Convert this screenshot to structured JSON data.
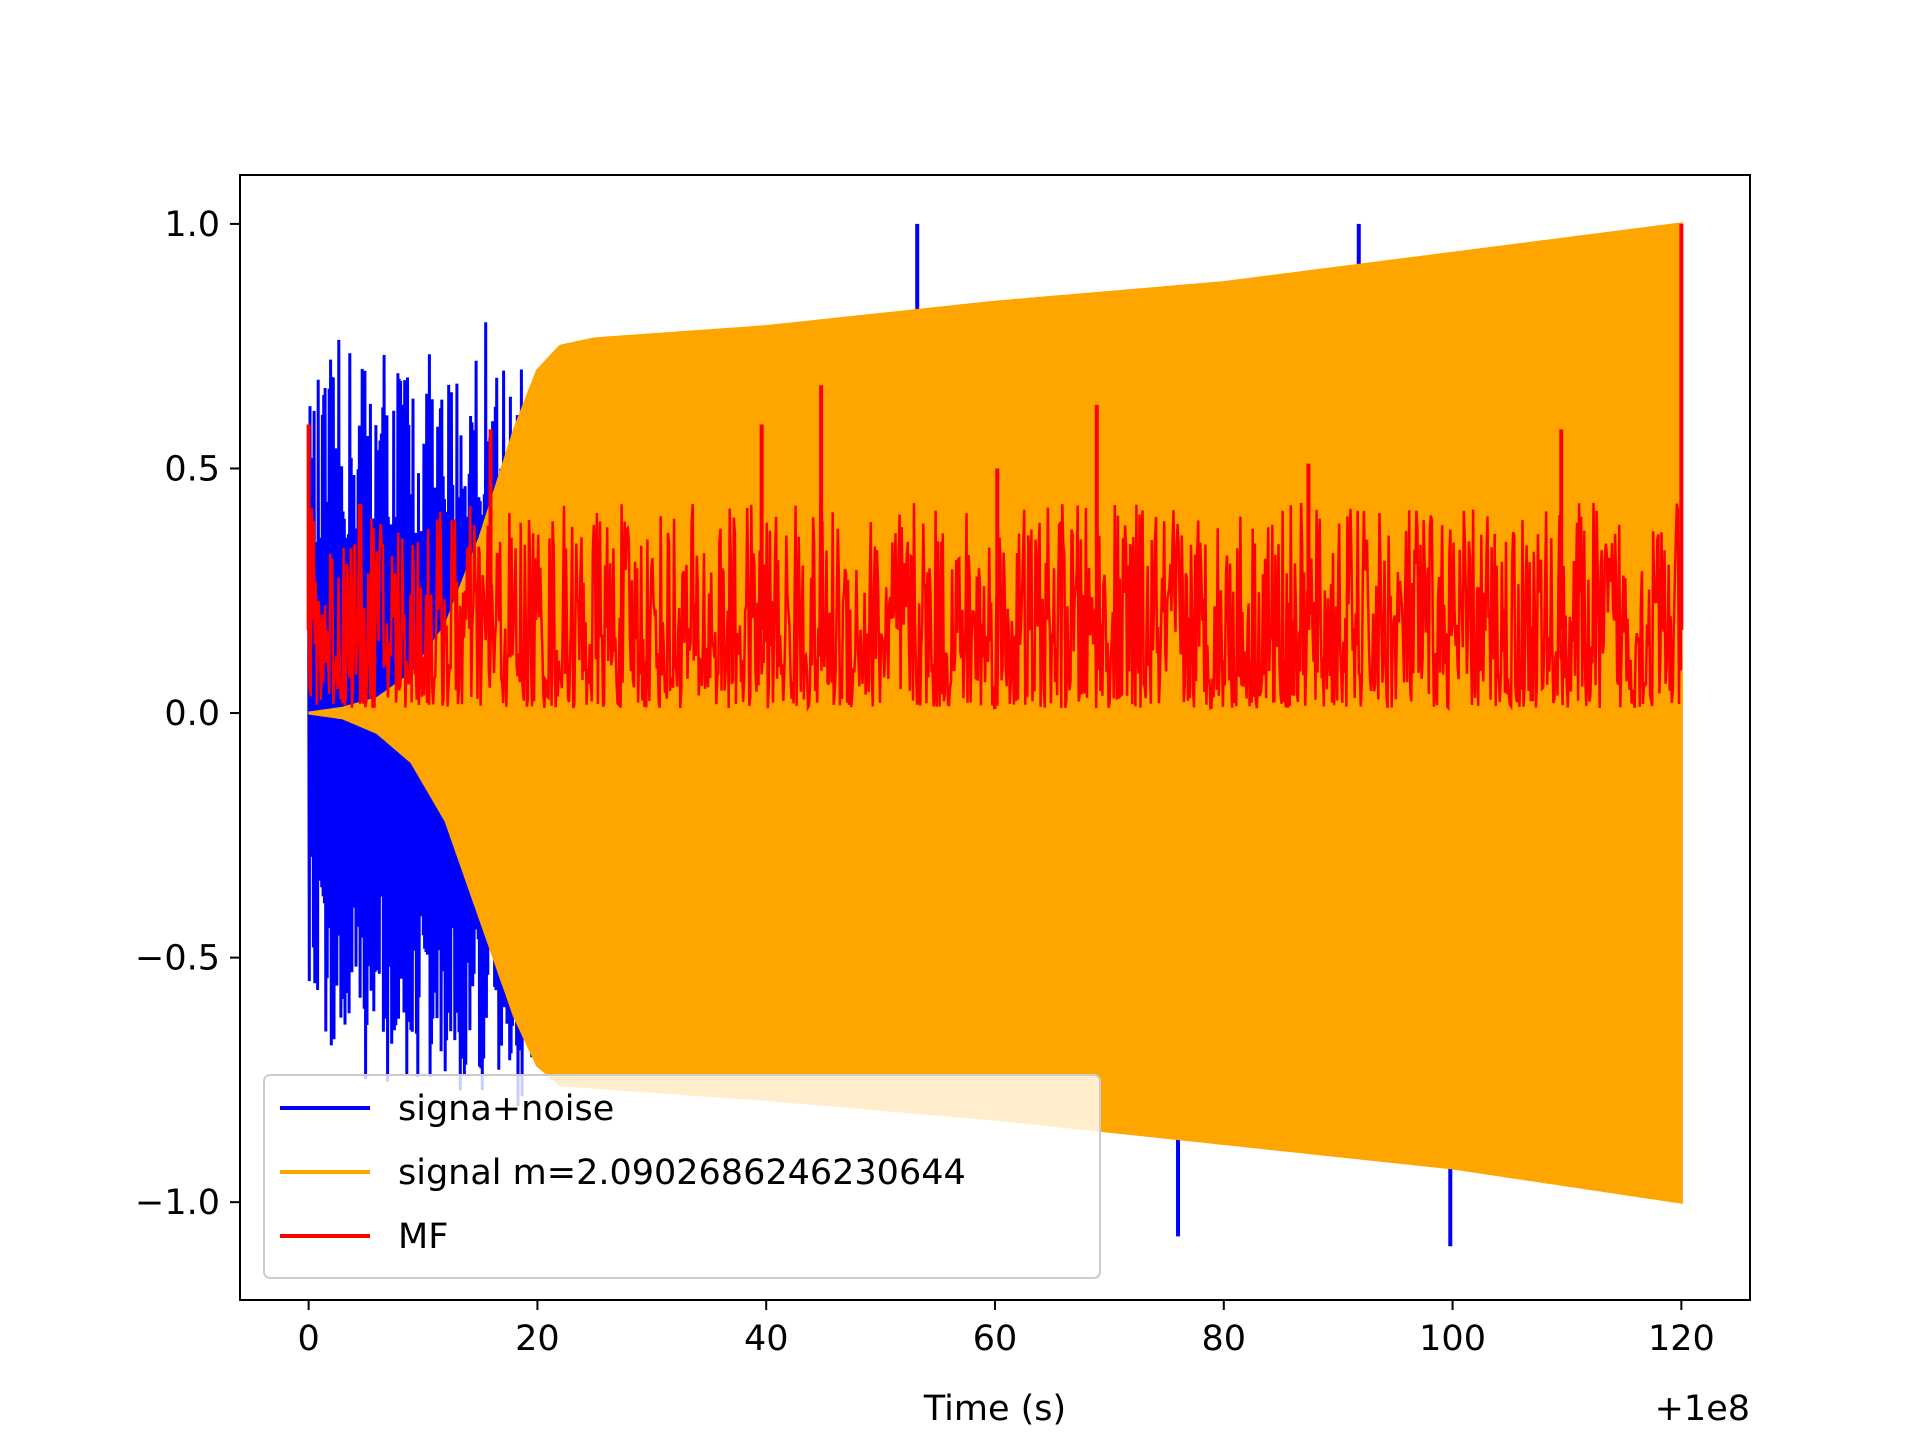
{
  "chart_data": {
    "type": "line",
    "title": "",
    "xlabel": "Time (s)",
    "ylabel": "",
    "x_offset_label": "+1e8",
    "xlim": [
      -6,
      126
    ],
    "ylim": [
      -1.2,
      1.1
    ],
    "x_ticks": [
      0,
      20,
      40,
      60,
      80,
      100,
      120
    ],
    "x_tick_labels": [
      "0",
      "20",
      "40",
      "60",
      "80",
      "100",
      "120"
    ],
    "y_ticks": [
      -1.0,
      -0.5,
      0.0,
      0.5,
      1.0
    ],
    "y_tick_labels": [
      "−1.0",
      "−0.5",
      "0.0",
      "0.5",
      "1.0"
    ],
    "grid": false,
    "legend_placement": "lower-left",
    "series": [
      {
        "name": "signa+noise",
        "color": "#0000ff",
        "style": "dense noise, peak ±1.0 with outliers",
        "envelope_x": [
          0,
          3,
          6,
          9,
          12,
          15,
          18,
          20
        ],
        "upper": [
          0.66,
          0.78,
          0.8,
          0.76,
          0.72,
          0.84,
          0.82,
          0.6
        ],
        "lower": [
          -0.6,
          -0.75,
          -0.76,
          -0.77,
          -0.78,
          -0.79,
          -0.83,
          -0.7
        ],
        "spikes": [
          {
            "x": 53.2,
            "y": 1.0
          },
          {
            "x": 91.8,
            "y": 1.0
          },
          {
            "x": 76.0,
            "y": -1.07
          },
          {
            "x": 99.8,
            "y": -1.09
          }
        ]
      },
      {
        "name": "signal m=2.0902686246230644",
        "color": "#ffa500",
        "style": "chirp oscillation envelope",
        "envelope_x": [
          0,
          3,
          6,
          9,
          12,
          15,
          18,
          20,
          22,
          25,
          40,
          60,
          80,
          100,
          120
        ],
        "upper": [
          0.0,
          0.01,
          0.03,
          0.08,
          0.18,
          0.36,
          0.58,
          0.7,
          0.75,
          0.765,
          0.79,
          0.84,
          0.88,
          0.94,
          1.0
        ],
        "lower": [
          0.0,
          -0.01,
          -0.04,
          -0.1,
          -0.22,
          -0.42,
          -0.62,
          -0.72,
          -0.76,
          -0.765,
          -0.79,
          -0.83,
          -0.88,
          -0.93,
          -1.0
        ]
      },
      {
        "name": "MF",
        "color": "#ff0000",
        "style": "matched filter output, noisy around 0.2",
        "mean": 0.17,
        "min": 0.0,
        "spikes": [
          {
            "x": 0.0,
            "y": 0.59
          },
          {
            "x": 15.9,
            "y": 0.58
          },
          {
            "x": 39.6,
            "y": 0.59
          },
          {
            "x": 44.8,
            "y": 0.67
          },
          {
            "x": 60.2,
            "y": 0.5
          },
          {
            "x": 68.9,
            "y": 0.63
          },
          {
            "x": 87.4,
            "y": 0.51
          },
          {
            "x": 109.5,
            "y": 0.58
          },
          {
            "x": 120.0,
            "y": 1.0
          }
        ]
      }
    ]
  }
}
